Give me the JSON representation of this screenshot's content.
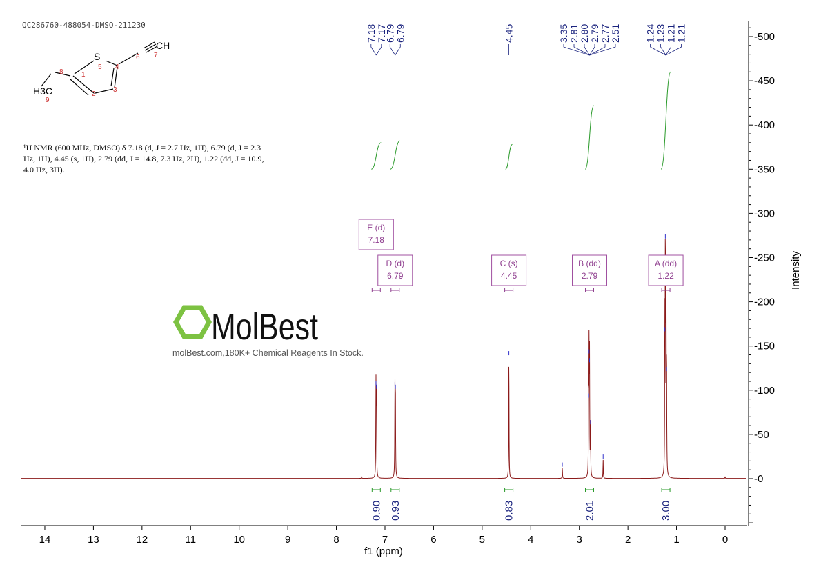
{
  "sample_id": "QC286760-488054-DMSO-211230",
  "nmr_description": "¹H NMR (600 MHz, DMSO) δ 7.18 (d, J = 2.7 Hz, 1H), 6.79 (d, J = 2.3 Hz, 1H), 4.45 (s, 1H), 2.79 (dd, J = 14.8, 7.3 Hz, 2H), 1.22 (dd, J = 10.9, 4.0 Hz, 3H).",
  "structure": {
    "atoms": [
      "S",
      "CH",
      "H3C"
    ],
    "numbers": [
      "1",
      "2",
      "3",
      "4",
      "5",
      "6",
      "7",
      "8",
      "9"
    ]
  },
  "watermark": {
    "logo": "MolBest",
    "url": "molBest.com,180K+ Chemical Reagents In Stock."
  },
  "chart_data": {
    "type": "line",
    "xlabel": "f1 (ppm)",
    "ylabel": "Intensity",
    "xlim": [
      14.5,
      -0.45
    ],
    "ylim": [
      -55,
      520
    ],
    "xticks": [
      14,
      13,
      12,
      11,
      10,
      9,
      8,
      7,
      6,
      5,
      4,
      3,
      2,
      1,
      0
    ],
    "yticks": [
      0,
      50,
      100,
      150,
      200,
      250,
      300,
      350,
      400,
      450,
      500
    ],
    "color": "#8b1a1a",
    "peaks": [
      {
        "ppm": 7.185,
        "height": 104
      },
      {
        "ppm": 7.175,
        "height": 100
      },
      {
        "ppm": 6.795,
        "height": 103
      },
      {
        "ppm": 6.785,
        "height": 100
      },
      {
        "ppm": 4.45,
        "height": 138
      },
      {
        "ppm": 3.35,
        "height": 12
      },
      {
        "ppm": 2.81,
        "height": 90
      },
      {
        "ppm": 2.8,
        "height": 140
      },
      {
        "ppm": 2.79,
        "height": 130
      },
      {
        "ppm": 2.77,
        "height": 60
      },
      {
        "ppm": 2.51,
        "height": 21
      },
      {
        "ppm": 1.24,
        "height": 165
      },
      {
        "ppm": 1.23,
        "height": 270
      },
      {
        "ppm": 1.215,
        "height": 160
      },
      {
        "ppm": 1.205,
        "height": 120
      },
      {
        "ppm": 7.48,
        "height": 2
      },
      {
        "ppm": 0.0,
        "height": 2
      }
    ],
    "peak_labels": [
      {
        "group": [
          "7.18",
          "7.17"
        ],
        "at": 7.18
      },
      {
        "group": [
          "6.79",
          "6.79"
        ],
        "at": 6.79
      },
      {
        "group": [
          "4.45"
        ],
        "at": 4.45
      },
      {
        "group": [
          "3.35",
          "2.81",
          "2.80",
          "2.79",
          "2.77",
          "2.51"
        ],
        "at": 2.79
      },
      {
        "group": [
          "1.24",
          "1.23",
          "1.21",
          "1.21"
        ],
        "at": 1.22
      }
    ],
    "multiplets": [
      {
        "label": "E (d)",
        "shift": "7.18",
        "ppm": 7.18
      },
      {
        "label": "D (d)",
        "shift": "6.79",
        "ppm": 6.79
      },
      {
        "label": "C (s)",
        "shift": "4.45",
        "ppm": 4.45
      },
      {
        "label": "B (dd)",
        "shift": "2.79",
        "ppm": 2.79
      },
      {
        "label": "A (dd)",
        "shift": "1.22",
        "ppm": 1.22
      }
    ],
    "integrals": [
      {
        "ppm": 7.18,
        "value": "0.90",
        "range": [
          7.28,
          7.08
        ],
        "curve": [
          350,
          380
        ]
      },
      {
        "ppm": 6.79,
        "value": "0.93",
        "range": [
          6.89,
          6.69
        ],
        "curve": [
          350,
          382
        ]
      },
      {
        "ppm": 4.45,
        "value": "0.83",
        "range": [
          4.52,
          4.38
        ],
        "curve": [
          350,
          378
        ]
      },
      {
        "ppm": 2.79,
        "value": "2.01",
        "range": [
          2.88,
          2.7
        ],
        "curve": [
          350,
          422
        ]
      },
      {
        "ppm": 1.22,
        "value": "3.00",
        "range": [
          1.32,
          1.12
        ],
        "curve": [
          350,
          460
        ]
      }
    ]
  }
}
